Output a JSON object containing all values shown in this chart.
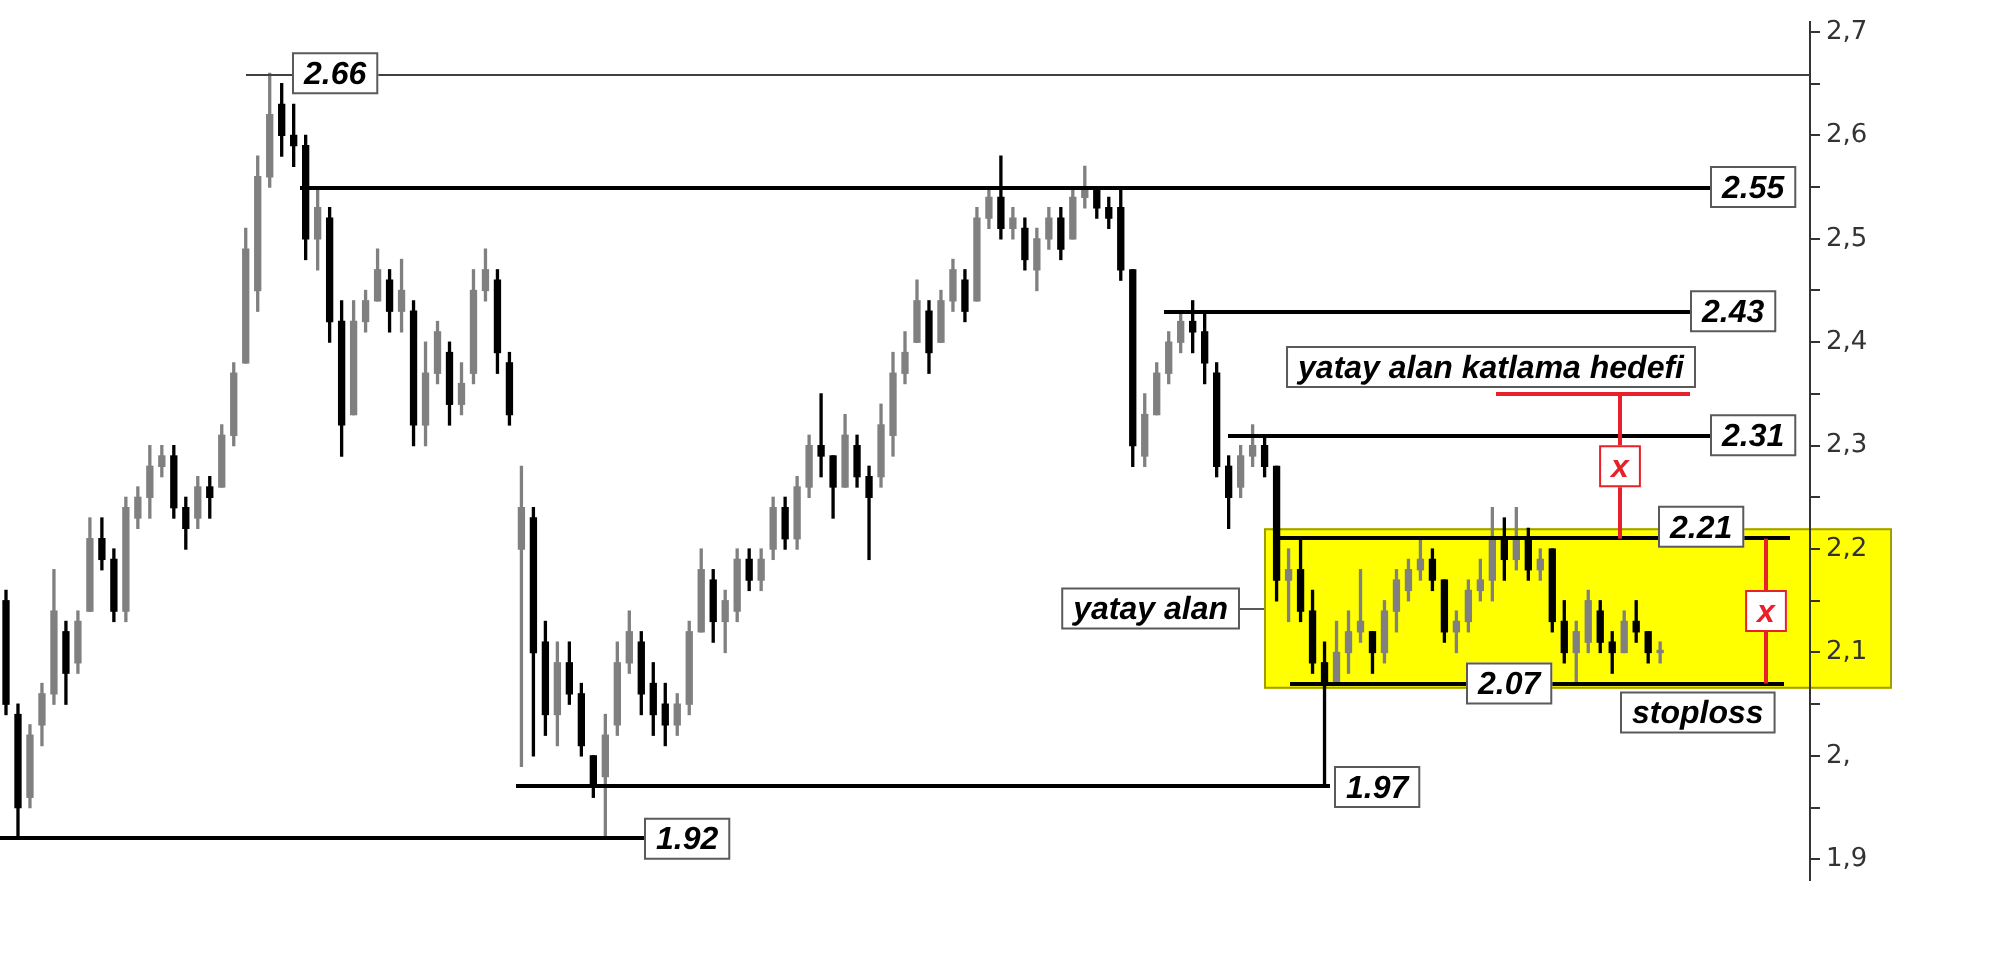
{
  "chart_data": {
    "type": "candlestick",
    "categories": [
      null,
      null,
      null,
      null,
      null,
      null,
      null,
      null,
      null,
      null,
      null,
      null,
      null,
      null,
      null,
      null,
      null,
      null,
      null,
      null,
      null,
      null,
      null,
      null,
      null,
      null,
      null,
      null,
      null,
      null,
      null,
      null,
      null,
      null,
      null,
      null,
      null,
      null,
      null,
      null,
      null,
      null,
      null,
      null,
      null,
      null,
      null,
      null,
      null,
      null,
      null,
      null,
      null,
      null,
      null,
      null,
      null,
      null,
      null,
      null,
      null,
      null,
      null,
      null,
      null,
      null,
      null,
      null,
      null,
      null,
      null,
      null,
      null,
      null,
      null,
      null,
      null,
      null,
      null,
      null,
      null,
      null,
      null,
      null,
      null,
      null,
      null,
      null,
      null,
      null,
      null,
      null,
      null,
      null,
      null,
      null,
      null,
      null,
      null,
      null,
      null,
      null,
      null,
      null,
      null,
      null,
      null,
      null,
      null,
      null,
      null,
      null,
      null,
      null,
      null,
      null,
      null,
      null,
      null,
      null,
      null,
      null,
      null,
      null,
      null,
      null,
      null,
      null,
      null,
      null,
      null,
      null,
      null,
      null,
      null,
      null,
      null,
      null,
      null,
      null,
      null,
      null,
      null,
      null,
      null,
      null,
      null,
      null,
      null,
      null,
      null
    ],
    "ohlc": [
      [
        2.15,
        2.16,
        2.04,
        2.05
      ],
      [
        2.04,
        2.05,
        1.92,
        1.95
      ],
      [
        1.96,
        2.03,
        1.95,
        2.02
      ],
      [
        2.03,
        2.07,
        2.01,
        2.06
      ],
      [
        2.06,
        2.18,
        2.05,
        2.14
      ],
      [
        2.12,
        2.13,
        2.05,
        2.08
      ],
      [
        2.09,
        2.14,
        2.08,
        2.13
      ],
      [
        2.14,
        2.23,
        2.14,
        2.21
      ],
      [
        2.21,
        2.23,
        2.18,
        2.19
      ],
      [
        2.19,
        2.2,
        2.13,
        2.14
      ],
      [
        2.14,
        2.25,
        2.13,
        2.24
      ],
      [
        2.23,
        2.26,
        2.22,
        2.25
      ],
      [
        2.25,
        2.3,
        2.23,
        2.28
      ],
      [
        2.28,
        2.3,
        2.27,
        2.29
      ],
      [
        2.29,
        2.3,
        2.23,
        2.24
      ],
      [
        2.24,
        2.25,
        2.2,
        2.22
      ],
      [
        2.23,
        2.27,
        2.22,
        2.26
      ],
      [
        2.26,
        2.27,
        2.23,
        2.25
      ],
      [
        2.26,
        2.32,
        2.26,
        2.31
      ],
      [
        2.31,
        2.38,
        2.3,
        2.37
      ],
      [
        2.38,
        2.51,
        2.38,
        2.49
      ],
      [
        2.45,
        2.58,
        2.43,
        2.56
      ],
      [
        2.56,
        2.66,
        2.55,
        2.62
      ],
      [
        2.63,
        2.65,
        2.58,
        2.6
      ],
      [
        2.6,
        2.63,
        2.57,
        2.59
      ],
      [
        2.59,
        2.6,
        2.48,
        2.5
      ],
      [
        2.5,
        2.55,
        2.47,
        2.53
      ],
      [
        2.52,
        2.53,
        2.4,
        2.42
      ],
      [
        2.42,
        2.44,
        2.29,
        2.32
      ],
      [
        2.33,
        2.44,
        2.33,
        2.42
      ],
      [
        2.42,
        2.45,
        2.41,
        2.44
      ],
      [
        2.44,
        2.49,
        2.44,
        2.47
      ],
      [
        2.46,
        2.47,
        2.41,
        2.43
      ],
      [
        2.43,
        2.48,
        2.41,
        2.45
      ],
      [
        2.43,
        2.44,
        2.3,
        2.32
      ],
      [
        2.32,
        2.4,
        2.3,
        2.37
      ],
      [
        2.37,
        2.42,
        2.36,
        2.41
      ],
      [
        2.39,
        2.4,
        2.32,
        2.34
      ],
      [
        2.34,
        2.38,
        2.33,
        2.36
      ],
      [
        2.37,
        2.47,
        2.36,
        2.45
      ],
      [
        2.45,
        2.49,
        2.44,
        2.47
      ],
      [
        2.46,
        2.47,
        2.37,
        2.39
      ],
      [
        2.38,
        2.39,
        2.32,
        2.33
      ],
      [
        2.2,
        2.28,
        1.99,
        2.24
      ],
      [
        2.23,
        2.24,
        2.0,
        2.1
      ],
      [
        2.11,
        2.13,
        2.02,
        2.04
      ],
      [
        2.04,
        2.11,
        2.01,
        2.09
      ],
      [
        2.09,
        2.11,
        2.05,
        2.06
      ],
      [
        2.06,
        2.07,
        2.0,
        2.01
      ],
      [
        2.0,
        2.0,
        1.96,
        1.97
      ],
      [
        1.98,
        2.04,
        1.92,
        2.02
      ],
      [
        2.03,
        2.11,
        2.02,
        2.09
      ],
      [
        2.09,
        2.14,
        2.08,
        2.12
      ],
      [
        2.11,
        2.12,
        2.04,
        2.06
      ],
      [
        2.07,
        2.09,
        2.02,
        2.04
      ],
      [
        2.05,
        2.07,
        2.01,
        2.03
      ],
      [
        2.03,
        2.06,
        2.02,
        2.05
      ],
      [
        2.05,
        2.13,
        2.04,
        2.12
      ],
      [
        2.12,
        2.2,
        2.12,
        2.18
      ],
      [
        2.17,
        2.18,
        2.11,
        2.13
      ],
      [
        2.13,
        2.16,
        2.1,
        2.15
      ],
      [
        2.14,
        2.2,
        2.13,
        2.19
      ],
      [
        2.19,
        2.2,
        2.16,
        2.17
      ],
      [
        2.17,
        2.2,
        2.16,
        2.19
      ],
      [
        2.2,
        2.25,
        2.19,
        2.24
      ],
      [
        2.24,
        2.25,
        2.2,
        2.21
      ],
      [
        2.21,
        2.27,
        2.2,
        2.26
      ],
      [
        2.26,
        2.31,
        2.25,
        2.3
      ],
      [
        2.3,
        2.35,
        2.27,
        2.29
      ],
      [
        2.29,
        2.29,
        2.23,
        2.26
      ],
      [
        2.26,
        2.33,
        2.26,
        2.31
      ],
      [
        2.3,
        2.31,
        2.26,
        2.27
      ],
      [
        2.27,
        2.28,
        2.19,
        2.25
      ],
      [
        2.27,
        2.34,
        2.26,
        2.32
      ],
      [
        2.31,
        2.39,
        2.29,
        2.37
      ],
      [
        2.37,
        2.41,
        2.36,
        2.39
      ],
      [
        2.4,
        2.46,
        2.4,
        2.44
      ],
      [
        2.43,
        2.44,
        2.37,
        2.39
      ],
      [
        2.4,
        2.45,
        2.4,
        2.44
      ],
      [
        2.44,
        2.48,
        2.43,
        2.47
      ],
      [
        2.46,
        2.47,
        2.42,
        2.43
      ],
      [
        2.44,
        2.53,
        2.44,
        2.52
      ],
      [
        2.52,
        2.55,
        2.51,
        2.54
      ],
      [
        2.54,
        2.58,
        2.5,
        2.51
      ],
      [
        2.51,
        2.53,
        2.5,
        2.52
      ],
      [
        2.51,
        2.52,
        2.47,
        2.48
      ],
      [
        2.47,
        2.51,
        2.45,
        2.5
      ],
      [
        2.5,
        2.53,
        2.49,
        2.52
      ],
      [
        2.52,
        2.53,
        2.48,
        2.49
      ],
      [
        2.5,
        2.55,
        2.5,
        2.54
      ],
      [
        2.54,
        2.57,
        2.53,
        2.55
      ],
      [
        2.55,
        2.55,
        2.52,
        2.53
      ],
      [
        2.53,
        2.54,
        2.51,
        2.52
      ],
      [
        2.53,
        2.55,
        2.46,
        2.47
      ],
      [
        2.47,
        2.47,
        2.28,
        2.3
      ],
      [
        2.29,
        2.35,
        2.28,
        2.33
      ],
      [
        2.33,
        2.38,
        2.33,
        2.37
      ],
      [
        2.37,
        2.41,
        2.36,
        2.4
      ],
      [
        2.4,
        2.43,
        2.39,
        2.42
      ],
      [
        2.42,
        2.44,
        2.39,
        2.41
      ],
      [
        2.41,
        2.43,
        2.36,
        2.38
      ],
      [
        2.37,
        2.38,
        2.27,
        2.28
      ],
      [
        2.28,
        2.29,
        2.22,
        2.25
      ],
      [
        2.26,
        2.3,
        2.25,
        2.29
      ],
      [
        2.29,
        2.32,
        2.28,
        2.3
      ],
      [
        2.3,
        2.31,
        2.27,
        2.28
      ],
      [
        2.28,
        2.28,
        2.15,
        2.17
      ],
      [
        2.17,
        2.2,
        2.13,
        2.18
      ],
      [
        2.18,
        2.21,
        2.13,
        2.14
      ],
      [
        2.14,
        2.16,
        2.08,
        2.09
      ],
      [
        2.09,
        2.11,
        1.97,
        2.07
      ],
      [
        2.07,
        2.13,
        2.07,
        2.1
      ],
      [
        2.1,
        2.14,
        2.08,
        2.12
      ],
      [
        2.12,
        2.18,
        2.11,
        2.13
      ],
      [
        2.12,
        2.12,
        2.08,
        2.1
      ],
      [
        2.1,
        2.15,
        2.09,
        2.14
      ],
      [
        2.14,
        2.18,
        2.12,
        2.17
      ],
      [
        2.16,
        2.19,
        2.15,
        2.18
      ],
      [
        2.18,
        2.21,
        2.17,
        2.19
      ],
      [
        2.19,
        2.2,
        2.16,
        2.17
      ],
      [
        2.17,
        2.17,
        2.11,
        2.12
      ],
      [
        2.12,
        2.14,
        2.1,
        2.13
      ],
      [
        2.13,
        2.17,
        2.12,
        2.16
      ],
      [
        2.16,
        2.19,
        2.15,
        2.17
      ],
      [
        2.17,
        2.24,
        2.15,
        2.21
      ],
      [
        2.21,
        2.23,
        2.17,
        2.19
      ],
      [
        2.19,
        2.24,
        2.18,
        2.21
      ],
      [
        2.21,
        2.22,
        2.17,
        2.18
      ],
      [
        2.18,
        2.2,
        2.17,
        2.19
      ],
      [
        2.2,
        2.2,
        2.12,
        2.13
      ],
      [
        2.13,
        2.15,
        2.09,
        2.1
      ],
      [
        2.1,
        2.13,
        2.07,
        2.12
      ],
      [
        2.11,
        2.16,
        2.1,
        2.15
      ],
      [
        2.14,
        2.15,
        2.1,
        2.11
      ],
      [
        2.11,
        2.12,
        2.08,
        2.1
      ],
      [
        2.1,
        2.14,
        2.1,
        2.13
      ],
      [
        2.13,
        2.15,
        2.11,
        2.12
      ],
      [
        2.12,
        2.12,
        2.09,
        2.1
      ],
      [
        2.1,
        2.11,
        2.09,
        2.1
      ],
      null,
      null,
      null,
      null,
      null,
      null,
      null,
      null,
      null,
      null,
      null,
      null
    ],
    "colors": [
      "#000000",
      "#000000",
      "#808080",
      "#808080",
      "#808080",
      "#000000",
      "#808080",
      "#808080",
      "#000000",
      "#000000",
      "#808080",
      "#808080",
      "#808080",
      "#808080",
      "#000000",
      "#000000",
      "#808080",
      "#000000",
      "#808080",
      "#808080",
      "#808080",
      "#808080",
      "#808080",
      "#000000",
      "#000000",
      "#000000",
      "#808080",
      "#000000",
      "#000000",
      "#808080",
      "#808080",
      "#808080",
      "#000000",
      "#808080",
      "#000000",
      "#808080",
      "#808080",
      "#000000",
      "#808080",
      "#808080",
      "#808080",
      "#000000",
      "#000000",
      "#808080",
      "#000000",
      "#000000",
      "#808080",
      "#000000",
      "#000000",
      "#000000",
      "#808080",
      "#808080",
      "#808080",
      "#000000",
      "#000000",
      "#000000",
      "#808080",
      "#808080",
      "#808080",
      "#000000",
      "#808080",
      "#808080",
      "#000000",
      "#808080",
      "#808080",
      "#000000",
      "#808080",
      "#808080",
      "#000000",
      "#000000",
      "#808080",
      "#000000",
      "#000000",
      "#808080",
      "#808080",
      "#808080",
      "#808080",
      "#000000",
      "#808080",
      "#808080",
      "#000000",
      "#808080",
      "#808080",
      "#000000",
      "#808080",
      "#000000",
      "#808080",
      "#808080",
      "#000000",
      "#808080",
      "#808080",
      "#000000",
      "#000000",
      "#000000",
      "#000000",
      "#808080",
      "#808080",
      "#808080",
      "#808080",
      "#000000",
      "#000000",
      "#000000",
      "#000000",
      "#808080",
      "#808080",
      "#000000",
      "#000000",
      "#808080",
      "#000000",
      "#000000",
      "#000000",
      "#808080",
      "#808080",
      "#808080",
      "#000000",
      "#808080",
      "#808080",
      "#808080",
      "#808080",
      "#000000",
      "#000000",
      "#808080",
      "#808080",
      "#808080",
      "#808080",
      "#000000",
      "#808080",
      "#000000",
      "#808080",
      "#000000",
      "#000000",
      "#808080",
      "#808080",
      "#000000",
      "#000000",
      "#808080",
      "#000000",
      "#000000",
      "#808080",
      null,
      null,
      null,
      null,
      null,
      null,
      null,
      null,
      null,
      null,
      null,
      null
    ],
    "ylim": [
      1.88,
      2.71
    ],
    "yticks": [
      {
        "value": 1.9,
        "label": "1,9"
      },
      {
        "value": 1.95,
        "label": null
      },
      {
        "value": 2.0,
        "label": "2,"
      },
      {
        "value": 2.05,
        "label": null
      },
      {
        "value": 2.1,
        "label": "2,1"
      },
      {
        "value": 2.15,
        "label": null
      },
      {
        "value": 2.2,
        "label": "2,2"
      },
      {
        "value": 2.25,
        "label": null
      },
      {
        "value": 2.3,
        "label": "2,3"
      },
      {
        "value": 2.35,
        "label": null
      },
      {
        "value": 2.4,
        "label": "2,4"
      },
      {
        "value": 2.45,
        "label": null
      },
      {
        "value": 2.5,
        "label": "2,5"
      },
      {
        "value": 2.55,
        "label": null
      },
      {
        "value": 2.6,
        "label": "2,6"
      },
      {
        "value": 2.65,
        "label": null
      },
      {
        "value": 2.7,
        "label": "2,7"
      }
    ],
    "tick_labels": "y",
    "ref_lines": [
      {
        "axis": "y",
        "value": 2.66,
        "label": "2.66",
        "color": "#404040"
      },
      {
        "axis": "y",
        "value": 2.55,
        "label": "2.55",
        "color": "#000000"
      },
      {
        "axis": "y",
        "value": 2.43,
        "label": "2.43",
        "color": "#000000"
      },
      {
        "axis": "y",
        "value": 2.35,
        "label": "yatay alan katlama hedefi",
        "color": "#e8202a"
      },
      {
        "axis": "y",
        "value": 2.31,
        "label": "2.31",
        "color": "#000000"
      },
      {
        "axis": "y",
        "value": 2.21,
        "label": "2.21",
        "color": "#000000"
      },
      {
        "axis": "y",
        "value": 2.07,
        "label": "2.07",
        "color": "#000000"
      },
      {
        "axis": "y",
        "value": 1.97,
        "label": "1.97",
        "color": "#000000"
      },
      {
        "axis": "y",
        "value": 1.92,
        "label": "1.92",
        "color": "#000000"
      }
    ],
    "bands": [
      {
        "axis": "y",
        "from": 2.065,
        "to": 2.22,
        "label": "yatay alan",
        "color": "#ffff00"
      }
    ],
    "annotations": [
      {
        "text": "stoploss",
        "y": 2.07
      },
      {
        "text": "x",
        "y": 2.28
      },
      {
        "text": "x",
        "y": 2.14
      }
    ]
  }
}
